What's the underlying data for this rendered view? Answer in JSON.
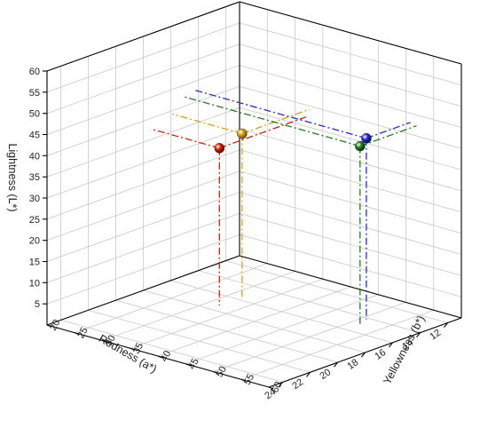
{
  "chart_data": {
    "type": "scatter3d",
    "xlabel": "Redness (a*)",
    "ylabel": "Yellowness (b*)",
    "zlabel": "Lightness (L*)",
    "xlim": [
      11,
      25
    ],
    "ylim": [
      20,
      60
    ],
    "zlim": [
      0,
      60
    ],
    "xticks": [
      12,
      14,
      16,
      18,
      20,
      22,
      24
    ],
    "yticks": [
      20,
      25,
      30,
      35,
      40,
      45,
      50,
      55,
      60
    ],
    "zticks": [
      5,
      10,
      15,
      20,
      25,
      30,
      35,
      40,
      45,
      50,
      55,
      60
    ],
    "grid": true,
    "drop_lines": true,
    "series": [
      {
        "x": 15.9,
        "y": 32.6,
        "z": 39.2,
        "color": "#d4a017"
      },
      {
        "x": 17.3,
        "y": 32.0,
        "z": 37.2,
        "color": "#cc2200"
      },
      {
        "x": 14.2,
        "y": 50.8,
        "z": 42.8,
        "color": "#2a2ad0"
      },
      {
        "x": 15.1,
        "y": 51.9,
        "z": 42.4,
        "color": "#1e7d1e"
      }
    ]
  }
}
